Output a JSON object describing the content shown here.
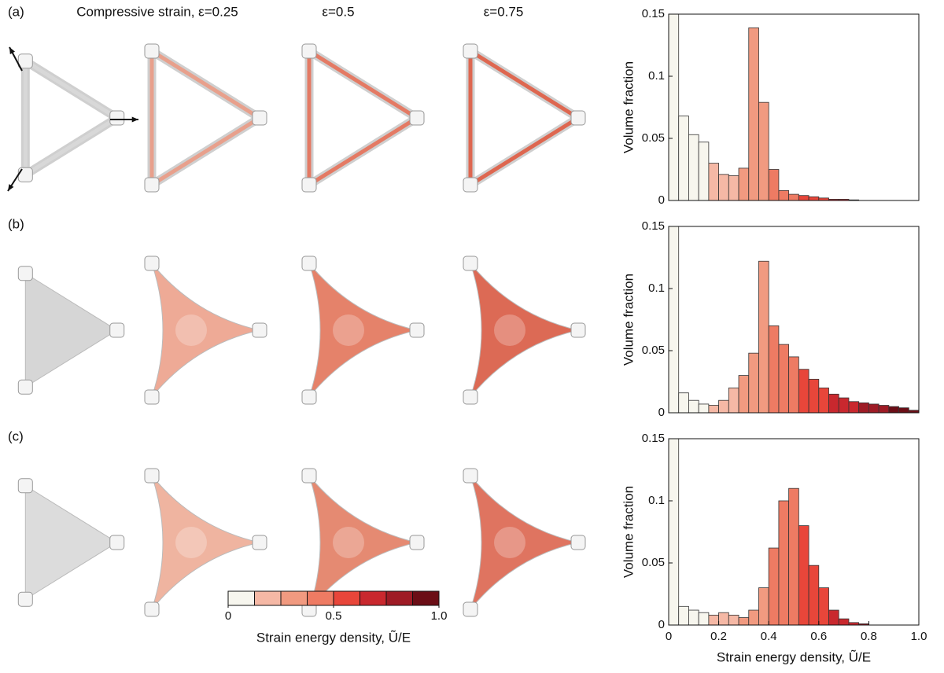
{
  "column_titles": [
    "Compressive strain, ε=0.25",
    "ε=0.5",
    "ε=0.75"
  ],
  "chart_data": [
    {
      "type": "histogram",
      "panel": "(a)",
      "ylabel": "Volume fraction",
      "bins": [
        0,
        0.04,
        0.08,
        0.12,
        0.16,
        0.2,
        0.24,
        0.28,
        0.32,
        0.36,
        0.4,
        0.44,
        0.48,
        0.52,
        0.56,
        0.6,
        0.64,
        0.68,
        0.72,
        0.76,
        0.8,
        0.84,
        0.88,
        0.92,
        0.96,
        1
      ],
      "values": [
        0.15,
        0.068,
        0.053,
        0.047,
        0.03,
        0.021,
        0.02,
        0.026,
        0.139,
        0.079,
        0.025,
        0.008,
        0.005,
        0.004,
        0.003,
        0.002,
        0.001,
        0.001,
        0.0005,
        0,
        0,
        0,
        0,
        0,
        0
      ],
      "xlim": [
        0,
        1
      ],
      "ylim": [
        0,
        0.15
      ],
      "yticks": [
        0,
        0.05,
        0.1,
        0.15
      ]
    },
    {
      "type": "histogram",
      "panel": "(b)",
      "ylabel": "Volume fraction",
      "bins": [
        0,
        0.04,
        0.08,
        0.12,
        0.16,
        0.2,
        0.24,
        0.28,
        0.32,
        0.36,
        0.4,
        0.44,
        0.48,
        0.52,
        0.56,
        0.6,
        0.64,
        0.68,
        0.72,
        0.76,
        0.8,
        0.84,
        0.88,
        0.92,
        0.96,
        1
      ],
      "values": [
        0.15,
        0.016,
        0.01,
        0.007,
        0.006,
        0.01,
        0.02,
        0.03,
        0.048,
        0.122,
        0.07,
        0.055,
        0.045,
        0.035,
        0.027,
        0.02,
        0.015,
        0.012,
        0.009,
        0.008,
        0.007,
        0.006,
        0.005,
        0.004,
        0.002
      ],
      "xlim": [
        0,
        1
      ],
      "ylim": [
        0,
        0.15
      ],
      "yticks": [
        0,
        0.05,
        0.1,
        0.15
      ]
    },
    {
      "type": "histogram",
      "panel": "(c)",
      "ylabel": "Volume fraction",
      "xlabel": "Strain energy density, Ũ/E",
      "bins": [
        0,
        0.04,
        0.08,
        0.12,
        0.16,
        0.2,
        0.24,
        0.28,
        0.32,
        0.36,
        0.4,
        0.44,
        0.48,
        0.52,
        0.56,
        0.6,
        0.64,
        0.68,
        0.72,
        0.76,
        0.8,
        0.84,
        0.88,
        0.92,
        0.96,
        1
      ],
      "values": [
        0.15,
        0.015,
        0.012,
        0.01,
        0.008,
        0.01,
        0.008,
        0.006,
        0.012,
        0.03,
        0.062,
        0.1,
        0.11,
        0.08,
        0.048,
        0.03,
        0.012,
        0.005,
        0.002,
        0.001,
        0,
        0,
        0,
        0,
        0
      ],
      "xlim": [
        0,
        1
      ],
      "ylim": [
        0,
        0.15
      ],
      "yticks": [
        0,
        0.05,
        0.1,
        0.15
      ],
      "xticks": [
        0,
        0.2,
        0.4,
        0.6,
        0.8,
        {
          "value": 1,
          "label": "1.0"
        }
      ]
    },
    {
      "type": "colorbar",
      "label": "Strain energy density, Ũ/E",
      "colors": [
        "#f7f6ee",
        "#f5b8a5",
        "#f19a80",
        "#ee7b63",
        "#e8463a",
        "#c9282e",
        "#9e1b25",
        "#6b0e16"
      ],
      "xlim": [
        0,
        1
      ],
      "xticks": [
        0,
        0.5,
        {
          "value": 1,
          "label": "1.0"
        }
      ]
    }
  ]
}
